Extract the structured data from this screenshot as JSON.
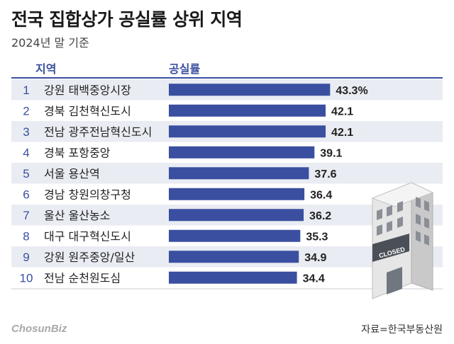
{
  "title": "전국 집합상가 공실률 상위 지역",
  "subtitle": "2024년 말 기준",
  "columns": {
    "region": "지역",
    "rate": "공실률"
  },
  "source": "자료=한국부동산원",
  "logo_text": "ChosunBiz",
  "building_sign": "CLOSED",
  "colors": {
    "bar": "#3a4fa0",
    "row_even": "#e9ecf2",
    "row_odd": "#ffffff",
    "rule": "#3a4fa0",
    "heading": "#3a4fa0"
  },
  "chart_data": {
    "type": "bar",
    "orientation": "horizontal",
    "title": "전국 집합상가 공실률 상위 지역",
    "subtitle": "2024년 말 기준",
    "xlabel": "공실률",
    "ylabel": "지역",
    "ranks": [
      "1",
      "2",
      "3",
      "4",
      "5",
      "6",
      "7",
      "8",
      "9",
      "10"
    ],
    "categories": [
      "강원 태백중앙시장",
      "경북 김천혁신도시",
      "전남 광주전남혁신도시",
      "경북 포항중앙",
      "서울 용산역",
      "경남 창원의창구청",
      "울산 울산농소",
      "대구 대구혁신도시",
      "강원 원주중앙/일산",
      "전남 순천원도심"
    ],
    "values": [
      43.3,
      42.1,
      42.1,
      39.1,
      37.6,
      36.4,
      36.2,
      35.3,
      34.9,
      34.4
    ],
    "value_labels": [
      "43.3%",
      "42.1",
      "42.1",
      "39.1",
      "37.6",
      "36.4",
      "36.2",
      "35.3",
      "34.9",
      "34.4"
    ]
  }
}
